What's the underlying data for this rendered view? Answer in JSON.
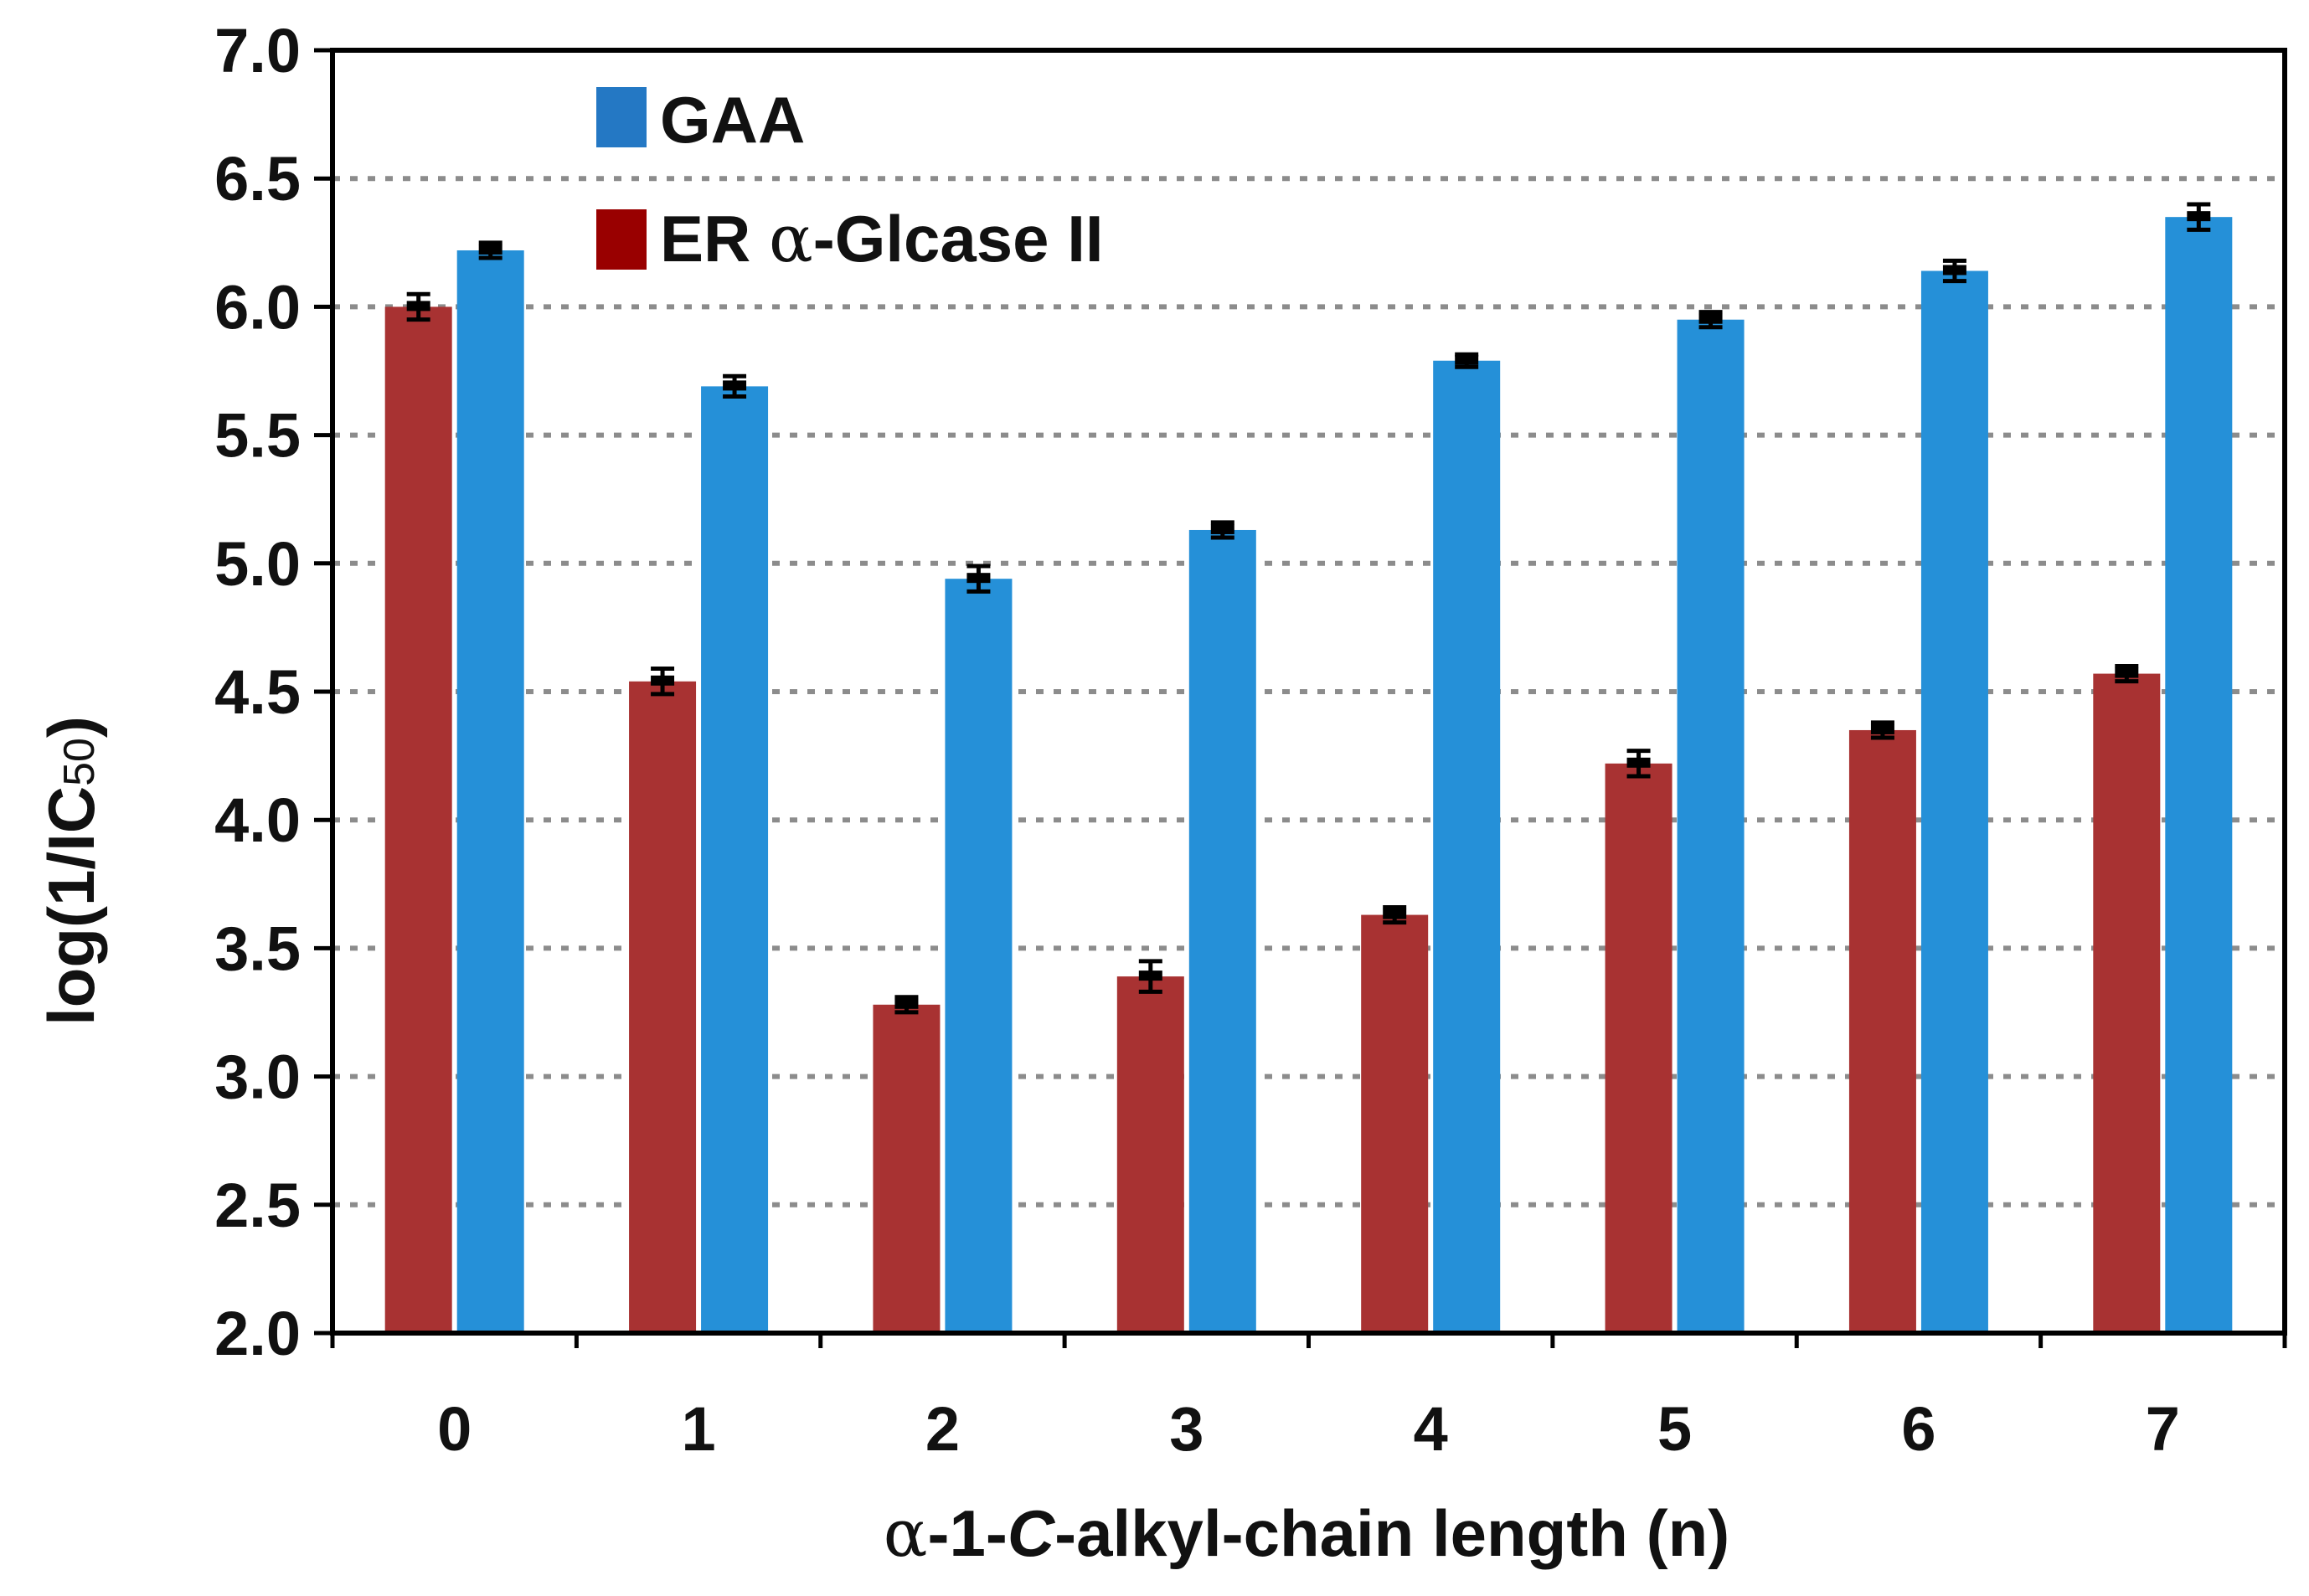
{
  "chart_data": {
    "type": "bar",
    "title": "",
    "xlabel_prefix": "α",
    "xlabel_mid": "-1-",
    "xlabel_italic": "C",
    "xlabel_suffix": "-alkyl-chain length (n)",
    "ylabel_main": "log(1/IC",
    "ylabel_sub": "50",
    "ylabel_close": ")",
    "ylim": [
      2.0,
      7.0
    ],
    "yticks": [
      "2.0",
      "2.5",
      "3.0",
      "3.5",
      "4.0",
      "4.5",
      "5.0",
      "5.5",
      "6.0",
      "6.5",
      "7.0"
    ],
    "grid": "horizontal dotted",
    "legend_position": "top-left",
    "categories": [
      "0",
      "1",
      "2",
      "3",
      "4",
      "5",
      "6",
      "7"
    ],
    "series": [
      {
        "name": "ER α-Glcase II",
        "legend_prefix": "ER ",
        "legend_symbol": "α",
        "legend_suffix": "-Glcase II",
        "color": "#a83232",
        "legend_color": "#990000",
        "values": [
          6.0,
          4.54,
          3.28,
          3.39,
          3.63,
          4.22,
          4.35,
          4.57
        ],
        "errors": [
          0.03,
          0.03,
          0.01,
          0.04,
          0.01,
          0.03,
          0.01,
          0.01
        ]
      },
      {
        "name": "GAA",
        "legend_prefix": "GAA",
        "legend_symbol": "",
        "legend_suffix": "",
        "color": "#2590d8",
        "legend_color": "#2478c4",
        "values": [
          6.22,
          5.69,
          4.94,
          5.13,
          5.79,
          5.95,
          6.14,
          6.35
        ],
        "errors": [
          0.01,
          0.02,
          0.03,
          0.01,
          0.005,
          0.01,
          0.02,
          0.03
        ]
      }
    ]
  }
}
